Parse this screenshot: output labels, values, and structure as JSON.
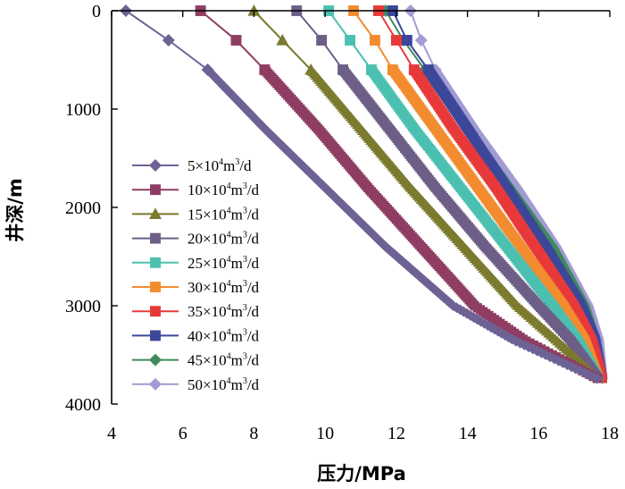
{
  "chart_data": {
    "type": "line",
    "title": "",
    "xlabel": "压力/MPa",
    "ylabel": "井深/m",
    "xlim": [
      4,
      18
    ],
    "ylim": [
      0,
      4000
    ],
    "x_ticks": [
      "4",
      "6",
      "8",
      "10",
      "12",
      "14",
      "16",
      "18"
    ],
    "y_ticks": [
      "0",
      "1000",
      "2000",
      "3000",
      "4000"
    ],
    "y_inverted": true,
    "x_axis_position": "top",
    "grid": false,
    "legend_position": "lower-left",
    "series": [
      {
        "name": "5×10⁴m³/d",
        "label_parts": [
          "5×10",
          "4",
          "m",
          "3",
          "/d"
        ],
        "color": "#6E6295",
        "marker": "diamond",
        "points": [
          [
            4.4,
            0
          ],
          [
            5.6,
            300
          ],
          [
            6.7,
            600
          ],
          [
            8.3,
            1200
          ],
          [
            10.0,
            1800
          ],
          [
            11.7,
            2400
          ],
          [
            13.6,
            3000
          ],
          [
            15.3,
            3350
          ],
          [
            17.7,
            3750
          ]
        ]
      },
      {
        "name": "10×10⁴m³/d",
        "label_parts": [
          "10×10",
          "4",
          "m",
          "3",
          "/d"
        ],
        "color": "#8F3D62",
        "marker": "square",
        "points": [
          [
            6.5,
            0
          ],
          [
            7.5,
            300
          ],
          [
            8.3,
            600
          ],
          [
            9.8,
            1200
          ],
          [
            11.2,
            1800
          ],
          [
            12.7,
            2400
          ],
          [
            14.2,
            3000
          ],
          [
            15.6,
            3350
          ],
          [
            17.7,
            3750
          ]
        ]
      },
      {
        "name": "15×10⁴m³/d",
        "label_parts": [
          "15×10",
          "4",
          "m",
          "3",
          "/d"
        ],
        "color": "#7B7A2E",
        "marker": "triangle",
        "points": [
          [
            8.0,
            0
          ],
          [
            8.8,
            300
          ],
          [
            9.6,
            600
          ],
          [
            11.0,
            1200
          ],
          [
            12.4,
            1800
          ],
          [
            13.9,
            2400
          ],
          [
            15.4,
            3000
          ],
          [
            16.5,
            3350
          ],
          [
            17.7,
            3750
          ]
        ]
      },
      {
        "name": "20×10⁴m³/d",
        "label_parts": [
          "20×10",
          "4",
          "m",
          "3",
          "/d"
        ],
        "color": "#6C5E86",
        "marker": "square",
        "points": [
          [
            9.2,
            0
          ],
          [
            9.9,
            300
          ],
          [
            10.5,
            600
          ],
          [
            11.8,
            1200
          ],
          [
            13.1,
            1800
          ],
          [
            14.5,
            2400
          ],
          [
            16.0,
            3000
          ],
          [
            16.9,
            3350
          ],
          [
            17.7,
            3750
          ]
        ]
      },
      {
        "name": "25×10⁴m³/d",
        "label_parts": [
          "25×10",
          "4",
          "m",
          "3",
          "/d"
        ],
        "color": "#4CC0B0",
        "marker": "square",
        "points": [
          [
            10.1,
            0
          ],
          [
            10.7,
            300
          ],
          [
            11.3,
            600
          ],
          [
            12.5,
            1200
          ],
          [
            13.8,
            1800
          ],
          [
            15.1,
            2400
          ],
          [
            16.4,
            3000
          ],
          [
            17.1,
            3350
          ],
          [
            17.7,
            3750
          ]
        ]
      },
      {
        "name": "30×10⁴m³/d",
        "label_parts": [
          "30×10",
          "4",
          "m",
          "3",
          "/d"
        ],
        "color": "#F28C2E",
        "marker": "square",
        "points": [
          [
            10.8,
            0
          ],
          [
            11.4,
            300
          ],
          [
            11.9,
            600
          ],
          [
            13.1,
            1200
          ],
          [
            14.3,
            1800
          ],
          [
            15.5,
            2400
          ],
          [
            16.7,
            3000
          ],
          [
            17.3,
            3350
          ],
          [
            17.7,
            3750
          ]
        ]
      },
      {
        "name": "35×10⁴m³/d",
        "label_parts": [
          "35×10",
          "4",
          "m",
          "3",
          "/d"
        ],
        "color": "#E8393A",
        "marker": "square",
        "points": [
          [
            11.5,
            0
          ],
          [
            12.0,
            300
          ],
          [
            12.5,
            600
          ],
          [
            13.6,
            1200
          ],
          [
            14.8,
            1800
          ],
          [
            15.9,
            2400
          ],
          [
            17.0,
            3000
          ],
          [
            17.5,
            3350
          ],
          [
            17.8,
            3750
          ]
        ]
      },
      {
        "name": "40×10⁴m³/d",
        "label_parts": [
          "40×10",
          "4",
          "m",
          "3",
          "/d"
        ],
        "color": "#3C479A",
        "marker": "square",
        "points": [
          [
            11.9,
            0
          ],
          [
            12.3,
            300
          ],
          [
            12.9,
            600
          ],
          [
            14.0,
            1200
          ],
          [
            15.1,
            1800
          ],
          [
            16.2,
            2400
          ],
          [
            17.2,
            3000
          ],
          [
            17.6,
            3350
          ],
          [
            17.8,
            3750
          ]
        ]
      },
      {
        "name": "45×10⁴m³/d",
        "label_parts": [
          "45×10",
          "4",
          "m",
          "3",
          "/d"
        ],
        "color": "#3F8A5C",
        "marker": "diamond",
        "points": [
          [
            11.7,
            0
          ],
          [
            12.2,
            300
          ],
          [
            12.8,
            600
          ],
          [
            14.0,
            1200
          ],
          [
            15.2,
            1800
          ],
          [
            16.4,
            2400
          ],
          [
            17.3,
            3000
          ],
          [
            17.6,
            3350
          ],
          [
            17.8,
            3750
          ]
        ]
      },
      {
        "name": "50×10⁴m³/d",
        "label_parts": [
          "50×10",
          "4",
          "m",
          "3",
          "/d"
        ],
        "color": "#A29BD4",
        "marker": "diamond",
        "points": [
          [
            12.4,
            0
          ],
          [
            12.7,
            300
          ],
          [
            13.1,
            600
          ],
          [
            14.2,
            1200
          ],
          [
            15.4,
            1800
          ],
          [
            16.5,
            2400
          ],
          [
            17.4,
            3000
          ],
          [
            17.7,
            3350
          ],
          [
            17.8,
            3750
          ]
        ]
      }
    ]
  }
}
